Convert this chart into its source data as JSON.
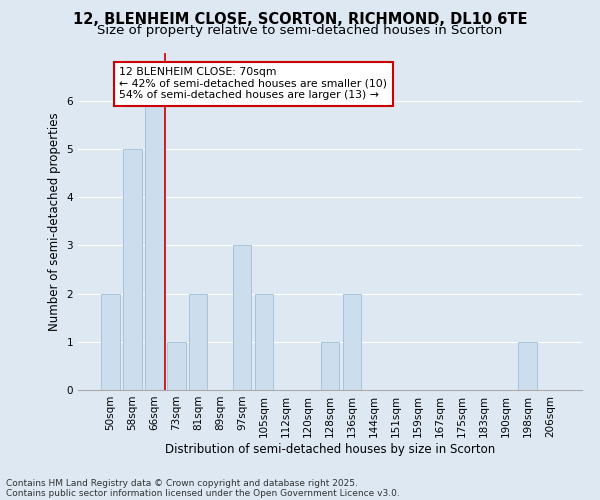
{
  "title": "12, BLENHEIM CLOSE, SCORTON, RICHMOND, DL10 6TE",
  "subtitle": "Size of property relative to semi-detached houses in Scorton",
  "xlabel": "Distribution of semi-detached houses by size in Scorton",
  "ylabel": "Number of semi-detached properties",
  "footnote1": "Contains HM Land Registry data © Crown copyright and database right 2025.",
  "footnote2": "Contains public sector information licensed under the Open Government Licence v3.0.",
  "bin_labels": [
    "50sqm",
    "58sqm",
    "66sqm",
    "73sqm",
    "81sqm",
    "89sqm",
    "97sqm",
    "105sqm",
    "112sqm",
    "120sqm",
    "128sqm",
    "136sqm",
    "144sqm",
    "151sqm",
    "159sqm",
    "167sqm",
    "175sqm",
    "183sqm",
    "190sqm",
    "198sqm",
    "206sqm"
  ],
  "bar_values": [
    2,
    5,
    6,
    1,
    2,
    0,
    3,
    2,
    0,
    0,
    1,
    2,
    0,
    0,
    0,
    0,
    0,
    0,
    0,
    1,
    0
  ],
  "bar_color": "#ccdded",
  "bar_edgecolor": "#a8c4da",
  "red_line_color": "#cc0000",
  "annotation_title": "12 BLENHEIM CLOSE: 70sqm",
  "annotation_line2": "← 42% of semi-detached houses are smaller (10)",
  "annotation_line3": "54% of semi-detached houses are larger (13) →",
  "annotation_box_color": "#ffffff",
  "annotation_border_color": "#cc0000",
  "ylim": [
    0,
    7
  ],
  "yticks": [
    0,
    1,
    2,
    3,
    4,
    5,
    6
  ],
  "background_color": "#dde8f2",
  "plot_background": "#dde8f2",
  "grid_color": "#ffffff",
  "title_fontsize": 10.5,
  "subtitle_fontsize": 9.5,
  "axis_label_fontsize": 8.5,
  "tick_fontsize": 7.5,
  "annotation_fontsize": 7.8,
  "footnote_fontsize": 6.5
}
